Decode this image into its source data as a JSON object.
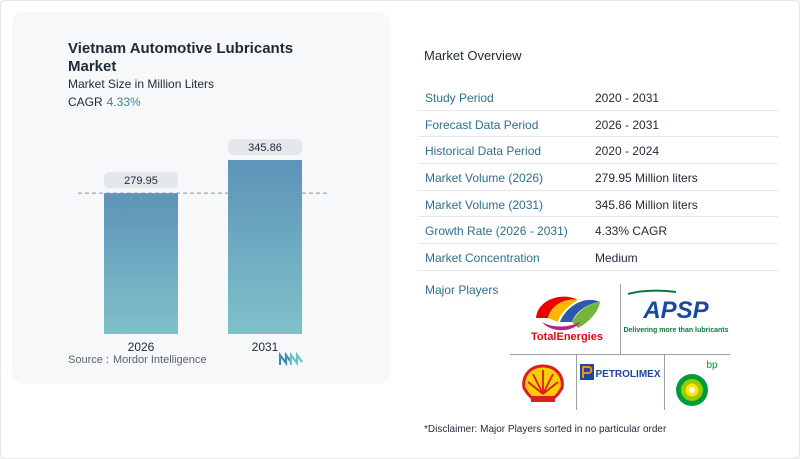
{
  "card": {
    "title": "Vietnam Automotive Lubricants Market",
    "subtitle": "Market Size in Million Liters",
    "cagr_label": "CAGR",
    "cagr_value": "4.33%",
    "source_label": "Source :",
    "source_value": "Mordor Intelligence"
  },
  "chart_data": {
    "type": "bar",
    "categories": [
      "2026",
      "2031"
    ],
    "values": [
      279.95,
      345.86
    ],
    "value_labels": [
      "279.95",
      "345.86"
    ],
    "title": "Vietnam Automotive Lubricants Market",
    "ylabel": "Market Size in Million Liters",
    "bar_color": "#6aa3c4",
    "reference_line_value": 279.95,
    "grid": false
  },
  "overview": {
    "title": "Market Overview",
    "rows": [
      {
        "key": "Study Period",
        "value": "2020 - 2031"
      },
      {
        "key": "Forecast Data Period",
        "value": "2026 - 2031"
      },
      {
        "key": "Historical Data Period",
        "value": "2020 - 2024"
      },
      {
        "key": "Market Volume (2026)",
        "value": "279.95 Million liters"
      },
      {
        "key": "Market Volume (2031)",
        "value": "345.86 Million liters"
      },
      {
        "key": "Growth Rate (2026 - 2031)",
        "value": "4.33% CAGR"
      },
      {
        "key": "Market Concentration",
        "value": "Medium"
      }
    ]
  },
  "players": {
    "label": "Major Players",
    "logos": [
      {
        "name": "TotalEnergies",
        "icon": "totalenergies-logo"
      },
      {
        "name": "APSP",
        "tagline": "Delivering more than lubricants",
        "icon": "apsp-logo"
      },
      {
        "name": "Shell",
        "icon": "shell-logo"
      },
      {
        "name": "PETROLIMEX",
        "icon": "petrolimex-logo"
      },
      {
        "name": "bp",
        "icon": "bp-logo"
      }
    ]
  },
  "disclaimer": "*Disclaimer: Major Players sorted in no particular order"
}
